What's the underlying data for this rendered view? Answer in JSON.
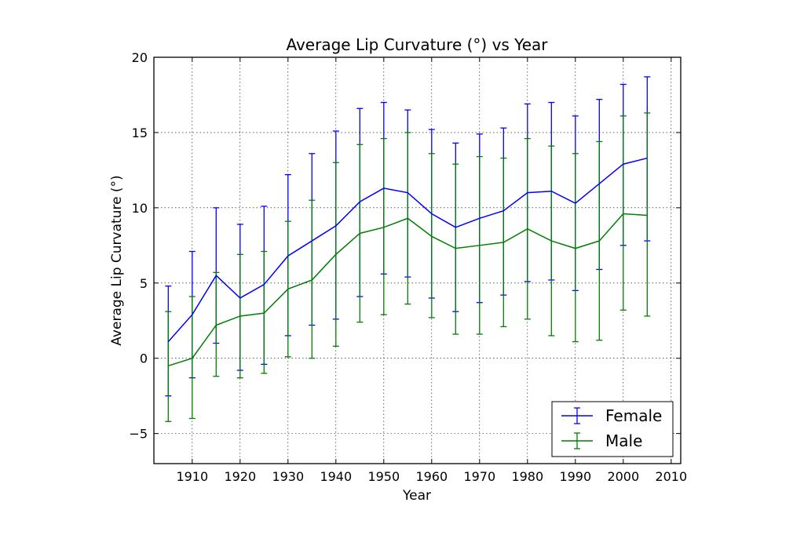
{
  "chart_data": {
    "type": "line",
    "title": "Average Lip Curvature (°) vs Year",
    "xlabel": "Year",
    "ylabel": "Average Lip Curvature (°)",
    "xlim": [
      1902,
      2012
    ],
    "ylim": [
      -7,
      20
    ],
    "xticks": [
      1910,
      1920,
      1930,
      1940,
      1950,
      1960,
      1970,
      1980,
      1990,
      2000,
      2010
    ],
    "yticks": [
      -5,
      0,
      5,
      10,
      15,
      20
    ],
    "grid": true,
    "legend_position": "bottom-right",
    "x": [
      1905,
      1910,
      1915,
      1920,
      1925,
      1930,
      1935,
      1940,
      1945,
      1950,
      1955,
      1960,
      1965,
      1970,
      1975,
      1980,
      1985,
      1990,
      1995,
      2000,
      2005
    ],
    "series": [
      {
        "name": "Female",
        "color": "#0000ff",
        "values": [
          1.1,
          2.9,
          5.5,
          4.0,
          4.9,
          6.8,
          7.8,
          8.8,
          10.4,
          11.3,
          11.0,
          9.6,
          8.7,
          9.3,
          9.8,
          11.0,
          11.1,
          10.3,
          11.6,
          12.9,
          13.3
        ],
        "err_low": [
          -2.5,
          -1.3,
          1.0,
          -0.8,
          -0.4,
          1.5,
          2.2,
          2.6,
          4.1,
          5.6,
          5.4,
          4.0,
          3.1,
          3.7,
          4.2,
          5.1,
          5.2,
          4.5,
          5.9,
          7.5,
          7.8
        ],
        "err_high": [
          4.8,
          7.1,
          10.0,
          8.9,
          10.1,
          12.2,
          13.6,
          15.1,
          16.6,
          17.0,
          16.5,
          15.2,
          14.3,
          14.9,
          15.3,
          16.9,
          17.0,
          16.1,
          17.2,
          18.2,
          18.7
        ]
      },
      {
        "name": "Male",
        "color": "#007f00",
        "values": [
          -0.5,
          0.0,
          2.2,
          2.8,
          3.0,
          4.6,
          5.2,
          6.9,
          8.3,
          8.7,
          9.3,
          8.1,
          7.3,
          7.5,
          7.7,
          8.6,
          7.8,
          7.3,
          7.8,
          9.6,
          9.5
        ],
        "err_low": [
          -4.2,
          -4.0,
          -1.2,
          -1.3,
          -1.0,
          0.1,
          0.0,
          0.8,
          2.4,
          2.9,
          3.6,
          2.7,
          1.6,
          1.6,
          2.1,
          2.6,
          1.5,
          1.1,
          1.2,
          3.2,
          2.8
        ],
        "err_high": [
          3.1,
          4.1,
          5.7,
          6.9,
          7.1,
          9.1,
          10.5,
          13.0,
          14.2,
          14.6,
          15.0,
          13.6,
          12.9,
          13.4,
          13.3,
          14.6,
          14.1,
          13.6,
          14.4,
          16.1,
          16.3
        ]
      }
    ]
  }
}
